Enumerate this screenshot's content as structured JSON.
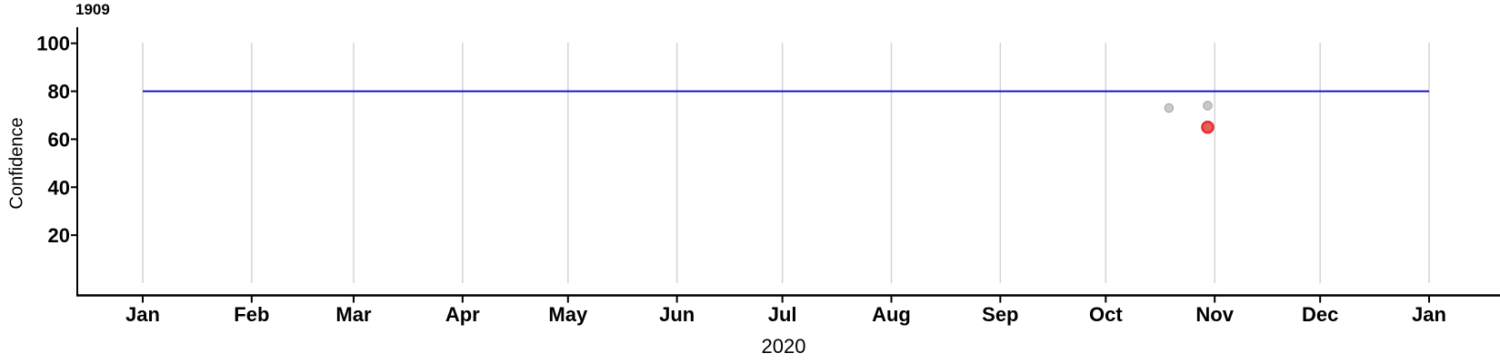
{
  "page": {
    "background": "#ffffff"
  },
  "chart_data": {
    "type": "scatter",
    "title": "1909",
    "xlabel": "2020",
    "ylabel": "Confidence",
    "x_axis": {
      "domain_start": "2020-01-01",
      "domain_end": "2021-01-01",
      "tick_dates": [
        "2020-01-01",
        "2020-02-01",
        "2020-03-01",
        "2020-04-01",
        "2020-05-01",
        "2020-06-01",
        "2020-07-01",
        "2020-08-01",
        "2020-09-01",
        "2020-10-01",
        "2020-11-01",
        "2020-12-01",
        "2021-01-01"
      ],
      "tick_labels": [
        "Jan",
        "Feb",
        "Mar",
        "Apr",
        "May",
        "Jun",
        "Jul",
        "Aug",
        "Sep",
        "Oct",
        "Nov",
        "Dec",
        "Jan"
      ],
      "grid": true
    },
    "y_axis": {
      "range": [
        0,
        100
      ],
      "ticks": [
        20,
        40,
        60,
        80,
        100
      ],
      "tick_labels": [
        "20",
        "40",
        "60",
        "80",
        "100"
      ],
      "grid": false
    },
    "reference_line": {
      "value": 80,
      "start": "2020-01-01",
      "end": "2021-01-01",
      "color": "#0a0acc"
    },
    "series": [
      {
        "name": "candidate-points",
        "marker_color": "#c9c9c9",
        "marker_stroke": "#acacac",
        "marker_radius": 4.7,
        "marker_stroke_width": 1.2,
        "points": [
          {
            "date": "2020-10-19",
            "value": 73
          },
          {
            "date": "2020-10-30",
            "value": 74
          }
        ]
      },
      {
        "name": "selected-point",
        "marker_color": "#ee5c5c",
        "marker_stroke": "#e03434",
        "marker_radius": 6.0,
        "marker_stroke_width": 2.6,
        "points": [
          {
            "date": "2020-10-30",
            "value": 65
          }
        ]
      }
    ],
    "colors": {
      "grid": "#d4d4d4",
      "axis": "#000000",
      "text": "#000000"
    },
    "legend": null,
    "layout_hints": {
      "grid_vertical_only": true,
      "tick_labels_bold": true
    }
  }
}
